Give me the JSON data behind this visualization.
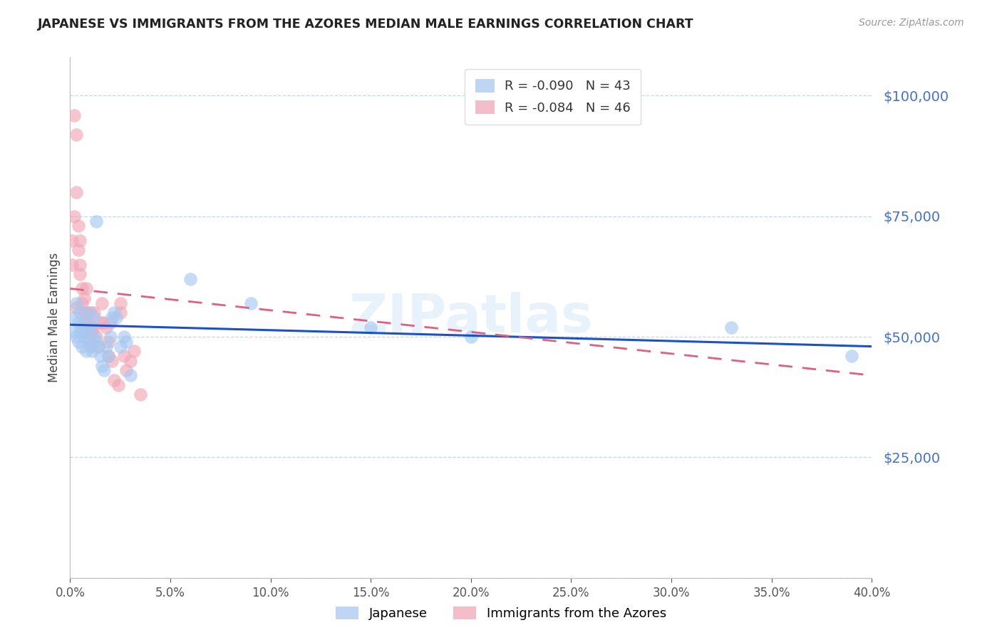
{
  "title": "JAPANESE VS IMMIGRANTS FROM THE AZORES MEDIAN MALE EARNINGS CORRELATION CHART",
  "source": "Source: ZipAtlas.com",
  "ylabel": "Median Male Earnings",
  "yticks": [
    0,
    25000,
    50000,
    75000,
    100000
  ],
  "xmin": 0.0,
  "xmax": 0.4,
  "ymin": 0,
  "ymax": 108000,
  "japanese_color": "#a8c8f0",
  "azores_color": "#f0a8b8",
  "trend_japanese_color": "#1a50c8",
  "trend_azores_color": "#e06080",
  "ytick_color": "#4472c4",
  "background_color": "#ffffff",
  "watermark": "ZIPatlas",
  "japanese_R": -0.09,
  "japanese_N": 43,
  "azores_R": -0.084,
  "azores_N": 46,
  "japanese_trend_x0": 0.0,
  "japanese_trend_y0": 52500,
  "japanese_trend_x1": 0.4,
  "japanese_trend_y1": 48000,
  "azores_trend_x0": 0.0,
  "azores_trend_y0": 60000,
  "azores_trend_x1": 0.4,
  "azores_trend_y1": 42000,
  "japanese_points": [
    [
      0.002,
      51000
    ],
    [
      0.002,
      54000
    ],
    [
      0.003,
      50000
    ],
    [
      0.003,
      57000
    ],
    [
      0.004,
      49000
    ],
    [
      0.004,
      53000
    ],
    [
      0.005,
      51000
    ],
    [
      0.005,
      55000
    ],
    [
      0.006,
      48000
    ],
    [
      0.006,
      52000
    ],
    [
      0.007,
      50000
    ],
    [
      0.007,
      53000
    ],
    [
      0.008,
      47000
    ],
    [
      0.008,
      51000
    ],
    [
      0.009,
      49000
    ],
    [
      0.009,
      55000
    ],
    [
      0.01,
      48000
    ],
    [
      0.01,
      52000
    ],
    [
      0.011,
      47000
    ],
    [
      0.012,
      50000
    ],
    [
      0.012,
      54000
    ],
    [
      0.013,
      74000
    ],
    [
      0.013,
      49000
    ],
    [
      0.014,
      48000
    ],
    [
      0.015,
      46000
    ],
    [
      0.016,
      44000
    ],
    [
      0.017,
      43000
    ],
    [
      0.018,
      48000
    ],
    [
      0.019,
      46000
    ],
    [
      0.02,
      50000
    ],
    [
      0.021,
      54000
    ],
    [
      0.022,
      55000
    ],
    [
      0.023,
      54000
    ],
    [
      0.025,
      48000
    ],
    [
      0.027,
      50000
    ],
    [
      0.028,
      49000
    ],
    [
      0.03,
      42000
    ],
    [
      0.06,
      62000
    ],
    [
      0.09,
      57000
    ],
    [
      0.15,
      52000
    ],
    [
      0.2,
      50000
    ],
    [
      0.33,
      52000
    ],
    [
      0.39,
      46000
    ]
  ],
  "azores_points": [
    [
      0.001,
      70000
    ],
    [
      0.001,
      65000
    ],
    [
      0.002,
      75000
    ],
    [
      0.002,
      96000
    ],
    [
      0.003,
      80000
    ],
    [
      0.003,
      92000
    ],
    [
      0.003,
      56000
    ],
    [
      0.004,
      73000
    ],
    [
      0.004,
      68000
    ],
    [
      0.005,
      65000
    ],
    [
      0.005,
      70000
    ],
    [
      0.005,
      63000
    ],
    [
      0.006,
      60000
    ],
    [
      0.006,
      57000
    ],
    [
      0.007,
      58000
    ],
    [
      0.007,
      55000
    ],
    [
      0.008,
      53000
    ],
    [
      0.008,
      60000
    ],
    [
      0.008,
      55000
    ],
    [
      0.009,
      50000
    ],
    [
      0.009,
      53000
    ],
    [
      0.01,
      52000
    ],
    [
      0.01,
      55000
    ],
    [
      0.011,
      48000
    ],
    [
      0.011,
      51000
    ],
    [
      0.012,
      55000
    ],
    [
      0.012,
      52000
    ],
    [
      0.013,
      50000
    ],
    [
      0.014,
      48000
    ],
    [
      0.015,
      53000
    ],
    [
      0.016,
      57000
    ],
    [
      0.017,
      53000
    ],
    [
      0.018,
      52000
    ],
    [
      0.019,
      49000
    ],
    [
      0.019,
      46000
    ],
    [
      0.02,
      53000
    ],
    [
      0.021,
      45000
    ],
    [
      0.022,
      41000
    ],
    [
      0.024,
      40000
    ],
    [
      0.025,
      55000
    ],
    [
      0.025,
      57000
    ],
    [
      0.027,
      46000
    ],
    [
      0.028,
      43000
    ],
    [
      0.03,
      45000
    ],
    [
      0.032,
      47000
    ],
    [
      0.035,
      38000
    ]
  ]
}
